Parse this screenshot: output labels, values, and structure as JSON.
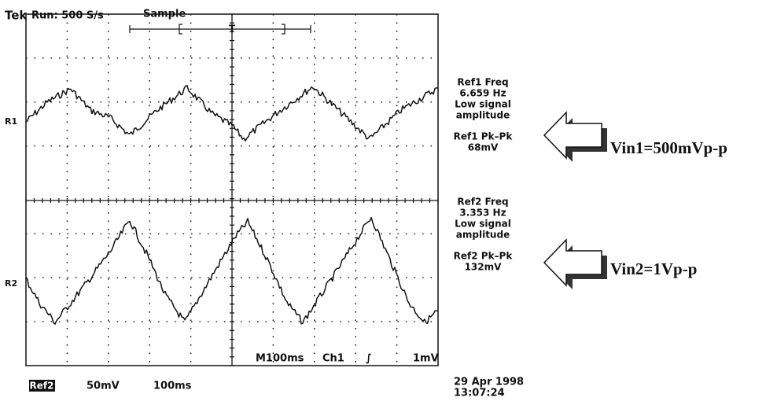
{
  "header": {
    "brand": "Tek",
    "run": "Run: 500 S/s",
    "mode": "Sample",
    "trigger": "T"
  },
  "channels": [
    "R1",
    "R2"
  ],
  "readouts": [
    {
      "freq_label": "Ref1 Freq",
      "freq": "6.659 Hz",
      "note_1": "Low signal",
      "note_2": "amplitude",
      "pkpk_label": "Ref1 Pk–Pk",
      "pkpk": "68mV",
      "annotation": "Vin1=500mVp-p"
    },
    {
      "freq_label": "Ref2 Freq",
      "freq": "3.353 Hz",
      "note_1": "Low signal",
      "note_2": "amplitude",
      "pkpk_label": "Ref2 Pk–Pk",
      "pkpk": "132mV",
      "annotation": "Vin2=1Vp-p"
    }
  ],
  "status": {
    "timebase": "M100ms",
    "trigger_source": "Ch1",
    "trigger_slope": "∫",
    "trigger_level": "1mV"
  },
  "footer": {
    "ref": "Ref2",
    "volts": "50mV",
    "time": "100ms",
    "date": "29 Apr 1998",
    "clock": "13:07:24"
  }
}
